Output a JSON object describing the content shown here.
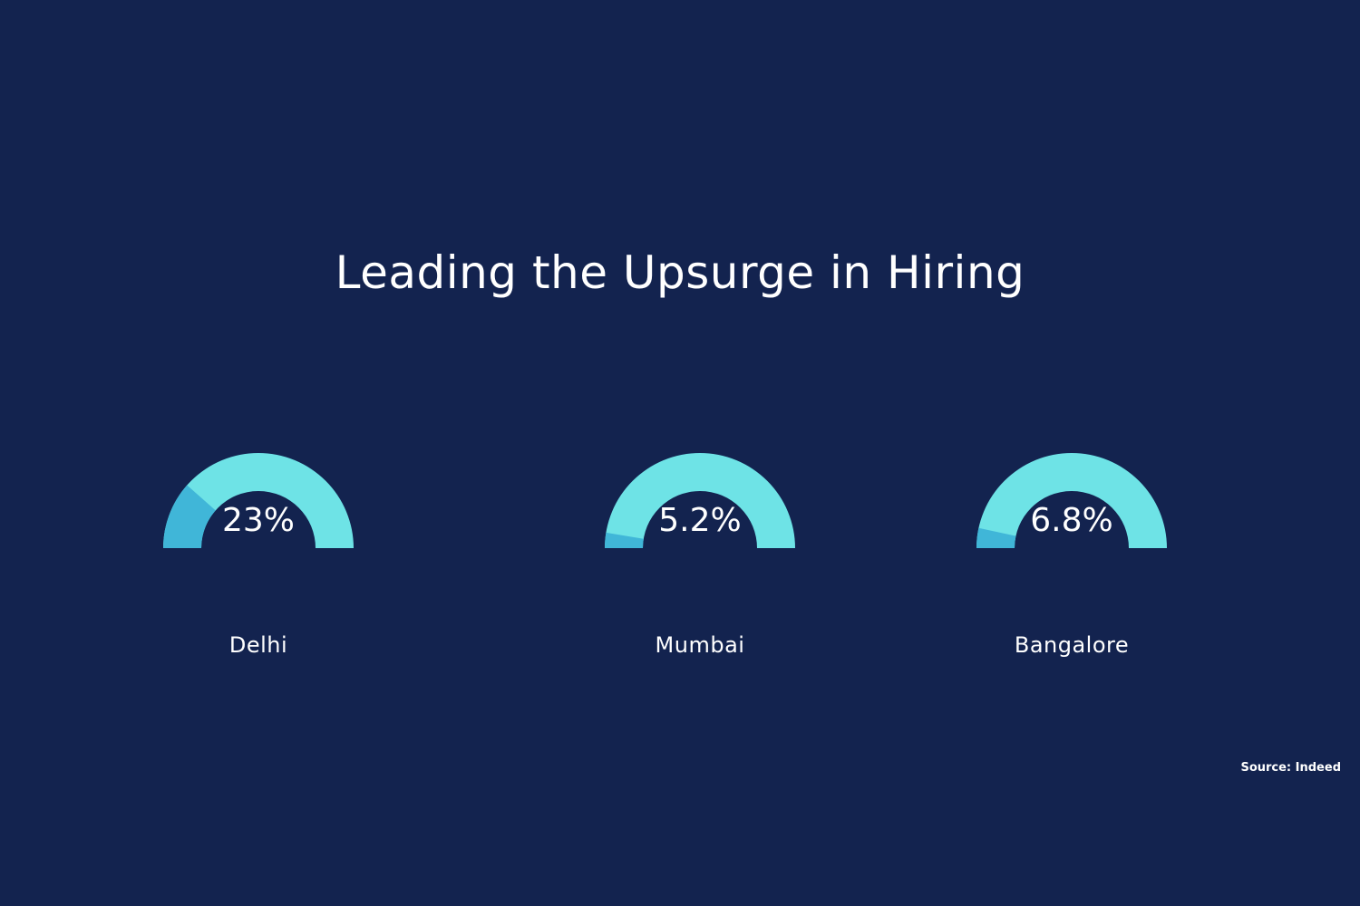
{
  "chart_data": {
    "type": "gauge",
    "title": "Leading the Upsurge in Hiring",
    "gauges": [
      {
        "category": "Delhi",
        "value": 23,
        "label": "23%"
      },
      {
        "category": "Mumbai",
        "value": 5.2,
        "label": "5.2%"
      },
      {
        "category": "Bangalore",
        "value": 6.8,
        "label": "6.8%"
      }
    ],
    "range": [
      0,
      100
    ],
    "colors": {
      "track": "#6ee3e6",
      "value": "#40b6d8",
      "background": "#13234f",
      "text": "#ffffff"
    }
  },
  "source": "Source: Indeed"
}
